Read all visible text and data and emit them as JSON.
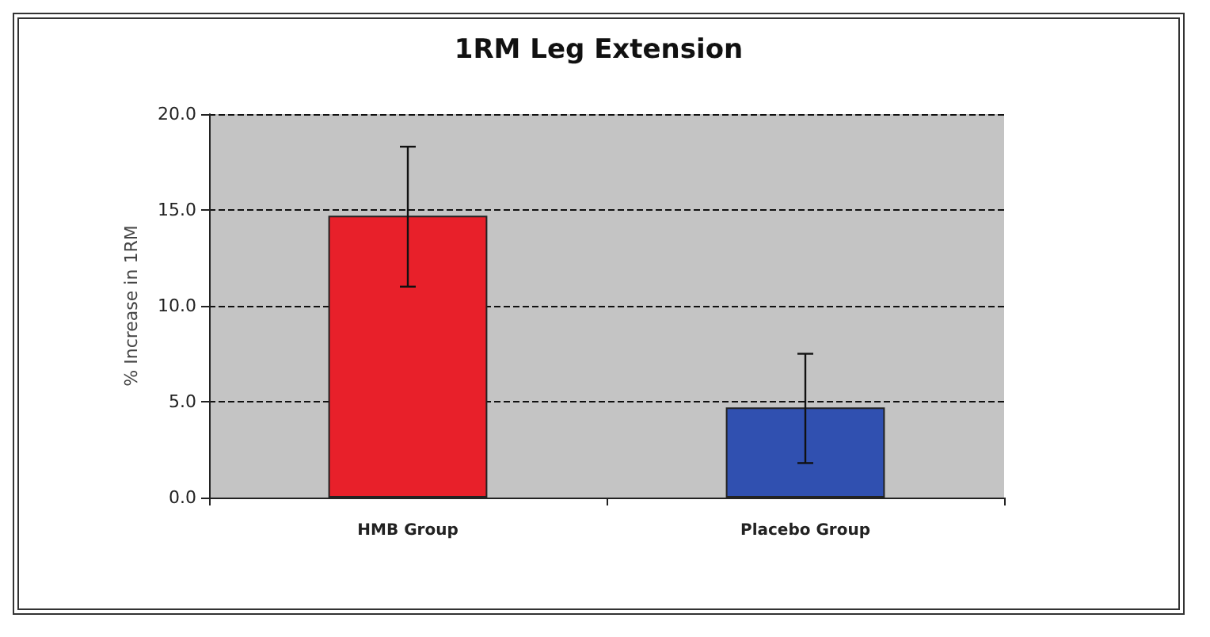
{
  "chart_data": {
    "type": "bar",
    "title": "1RM Leg Extension",
    "ylabel": "% Increase in 1RM",
    "categories": [
      "HMB Group",
      "Placebo Group"
    ],
    "values": [
      14.7,
      4.7
    ],
    "colors": [
      "#e8202a",
      "#3050b0"
    ],
    "errors": [
      [
        11.0,
        18.3
      ],
      [
        1.8,
        7.5
      ]
    ],
    "ylim": [
      0,
      20
    ],
    "yticks": [
      {
        "value": 0,
        "label": "0.0"
      },
      {
        "value": 5,
        "label": "5.0"
      },
      {
        "value": 10,
        "label": "10.0"
      },
      {
        "value": 15,
        "label": "15.0"
      },
      {
        "value": 20,
        "label": "20.0"
      }
    ],
    "grid": "y"
  }
}
